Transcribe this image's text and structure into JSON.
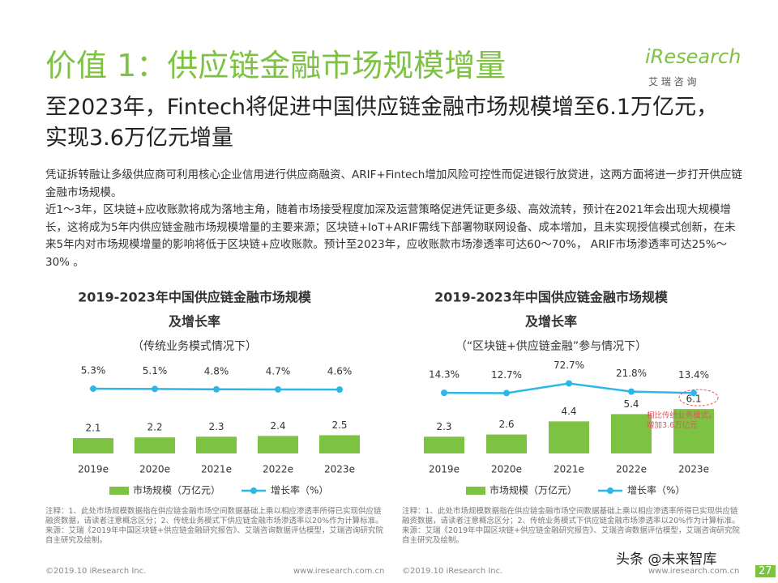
{
  "header": {
    "title": "价值 1：供应链金融市场规模增量",
    "logo": "iResearch",
    "logo_sub": "艾 瑞 咨 询"
  },
  "subtitle": "至2023年，Fintech将促进中国供应链金融市场规模增至6.1万亿元，实现3.6万亿元增量",
  "body": [
    "凭证拆转融让多级供应商可利用核心企业信用进行供应商融资、ARIF+Fintech增加风险可控性而促进银行放贷进，这两方面将进一步打开供应链金融市场规模。",
    "近1～3年，区块链+应收账款将成为落地主角，随着市场接受程度加深及运营策略促进凭证更多级、高效流转，预计在2021年会出现大规模增长，这将成为5年内供应链金融市场规模增量的主要来源；区块链+IoT+ARIF需线下部署物联网设备、成本增加，且未实现授信模式创新，在未来5年内对市场规模增量的影响将低于区块链+应收账款。预计至2023年，应收账款市场渗透率可达60～70%， ARIF市场渗透率可达25%～30% 。"
  ],
  "chart_data": [
    {
      "type": "combo",
      "title": [
        "2019-2023年中国供应链金融市场规模",
        "及增长率"
      ],
      "subtitle": "（传统业务模式情况下）",
      "categories": [
        "2019e",
        "2020e",
        "2021e",
        "2022e",
        "2023e"
      ],
      "series": [
        {
          "name": "市场规模（万亿元）",
          "color": "#7dc243",
          "values": [
            2.1,
            2.2,
            2.3,
            2.4,
            2.5
          ]
        },
        {
          "name": "增长率（%）",
          "color": "#2eb6e8",
          "values": [
            5.3,
            5.1,
            4.8,
            4.7,
            4.6
          ],
          "value_labels": [
            "5.3%",
            "5.1%",
            "4.8%",
            "4.7%",
            "4.6%"
          ]
        }
      ]
    },
    {
      "type": "combo",
      "title": [
        "2019-2023年中国供应链金融市场规模",
        "及增长率"
      ],
      "subtitle": "（“区块链+供应链金融”参与情况下）",
      "categories": [
        "2019e",
        "2020e",
        "2021e",
        "2022e",
        "2023e"
      ],
      "series": [
        {
          "name": "市场规模（万亿元）",
          "color": "#7dc243",
          "values": [
            2.3,
            2.6,
            4.4,
            5.4,
            6.1
          ]
        },
        {
          "name": "增长率（%）",
          "color": "#2eb6e8",
          "values": [
            14.3,
            12.7,
            72.7,
            21.8,
            13.4
          ],
          "value_labels": [
            "14.3%",
            "12.7%",
            "72.7%",
            "21.8%",
            "13.4%"
          ]
        }
      ],
      "annotation": "相比传统业务模式，增加3.6万亿元"
    }
  ],
  "notes": [
    {
      "note": "注释：1、此处市场规模数据指在供应链金融市场空间数据基础上乘以相应渗透率所得已实现供应链融资数据，请读者注意概念区分；2、传统业务模式下供应链金融市场渗透率以20%作为计算标准。",
      "source": "来源：艾瑞《2019年中国区块链+供应链金融研究报告》、艾瑞咨询数据评估模型，艾瑞咨询研究院自主研究及绘制。"
    },
    {
      "note": "注释：1、此处市场规模数据指在供应链金融市场空间数据基础上乘以相应渗透率所得已实现供应链融资数据，请读者注意概念区分；2、传统业务模式下供应链金融市场渗透率以20%作为计算标准。",
      "source": "来源：艾瑞《2019年中国区块链+供应链金融研究报告》、艾瑞咨询数据评估模型，艾瑞咨询研究院自主研究及绘制。"
    }
  ],
  "footer": {
    "copyright": [
      "©2019.10 iResearch Inc.",
      "©2019.10 iResearch Inc."
    ],
    "url": [
      "www.iresearch.com.cn",
      "www.iresearch.com.cn"
    ],
    "page": "27",
    "watermark": "头条 @未来智库"
  }
}
